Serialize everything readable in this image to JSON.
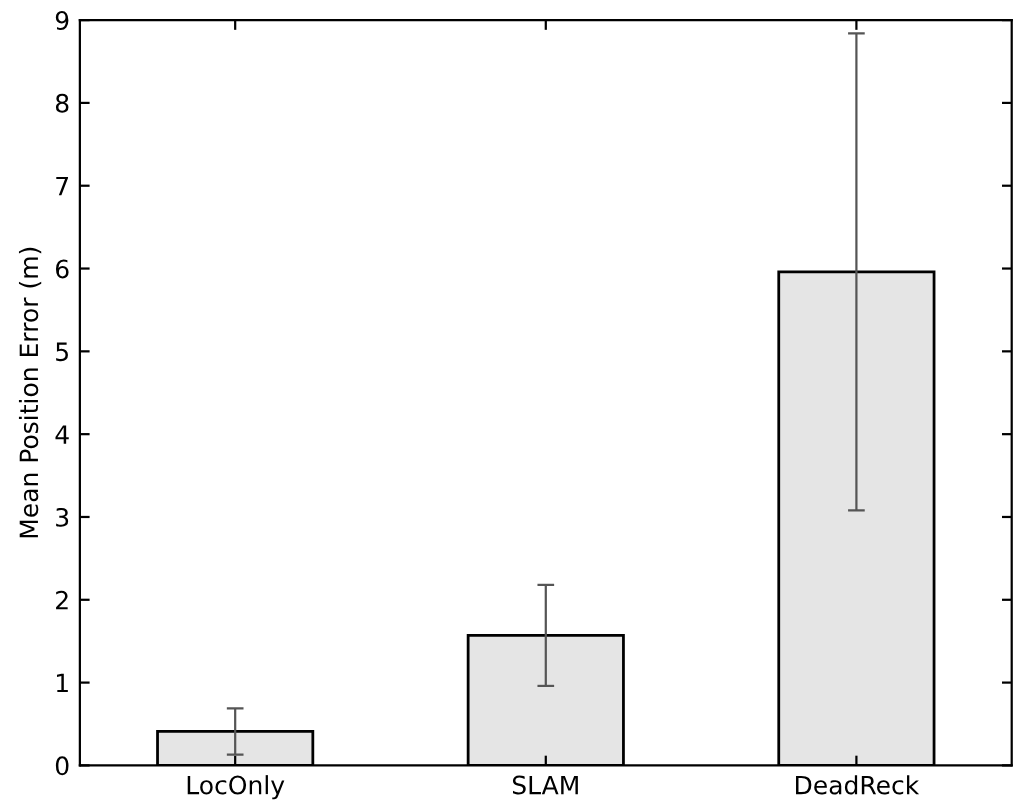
{
  "chart_data": {
    "type": "bar",
    "ylabel": "Mean Position Error (m)",
    "categories": [
      "LocOnly",
      "SLAM",
      "DeadReck"
    ],
    "values": [
      0.41,
      1.57,
      5.96
    ],
    "errors": [
      0.28,
      0.61,
      2.88
    ],
    "color": "#e5e5e5",
    "ylim": [
      0,
      9
    ],
    "yticks": [
      0,
      1,
      2,
      3,
      4,
      5,
      6,
      7,
      8,
      9
    ],
    "grid": false
  }
}
